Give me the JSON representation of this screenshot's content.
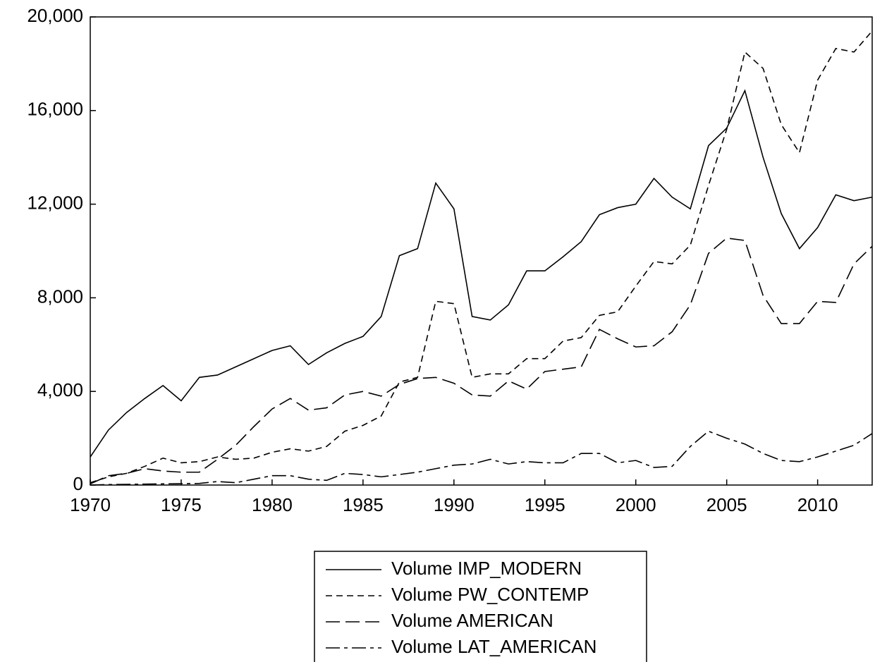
{
  "chart_data": {
    "type": "line",
    "x": [
      1970,
      1971,
      1972,
      1973,
      1974,
      1975,
      1976,
      1977,
      1978,
      1979,
      1980,
      1981,
      1982,
      1983,
      1984,
      1985,
      1986,
      1987,
      1988,
      1989,
      1990,
      1991,
      1992,
      1993,
      1994,
      1995,
      1996,
      1997,
      1998,
      1999,
      2000,
      2001,
      2002,
      2003,
      2004,
      2005,
      2006,
      2007,
      2008,
      2009,
      2010,
      2011,
      2012,
      2013
    ],
    "series": [
      {
        "name": "Volume IMP_MODERN",
        "color": "#000000",
        "line_style": "solid",
        "values": [
          1200,
          2350,
          3100,
          3700,
          4250,
          3600,
          4600,
          4700,
          5050,
          5400,
          5750,
          5950,
          5150,
          5650,
          6050,
          6350,
          7200,
          9800,
          10100,
          12900,
          11800,
          7200,
          7050,
          7700,
          9150,
          9150,
          9750,
          10400,
          11550,
          11850,
          12000,
          13100,
          12300,
          11800,
          14500,
          15250,
          16850,
          14000,
          11600,
          10100,
          11000,
          12400,
          12150,
          12300
        ]
      },
      {
        "name": "Volume PW_CONTEMP",
        "color": "#000000",
        "line_style": "short-dash",
        "values": [
          100,
          350,
          500,
          800,
          1150,
          950,
          1000,
          1200,
          1100,
          1150,
          1400,
          1550,
          1450,
          1650,
          2300,
          2550,
          2950,
          4400,
          4600,
          7850,
          7750,
          4600,
          4750,
          4750,
          5400,
          5400,
          6150,
          6300,
          7250,
          7400,
          8500,
          9550,
          9450,
          10250,
          12800,
          15200,
          18500,
          17800,
          15400,
          14200,
          17300,
          18650,
          18500,
          19400
        ]
      },
      {
        "name": "Volume AMERICAN",
        "color": "#000000",
        "line_style": "long-dash",
        "values": [
          50,
          400,
          500,
          700,
          600,
          550,
          550,
          1100,
          1700,
          2500,
          3250,
          3700,
          3200,
          3300,
          3850,
          4000,
          3800,
          4300,
          4550,
          4600,
          4350,
          3850,
          3800,
          4450,
          4100,
          4850,
          4950,
          5050,
          6650,
          6250,
          5900,
          5950,
          6550,
          7700,
          9900,
          10550,
          10450,
          8100,
          6900,
          6900,
          7850,
          7800,
          9450,
          10200
        ]
      },
      {
        "name": "Volume LAT_AMERICAN",
        "color": "#000000",
        "line_style": "dash-dot",
        "values": [
          0,
          20,
          30,
          40,
          50,
          60,
          70,
          150,
          100,
          250,
          400,
          400,
          250,
          200,
          500,
          450,
          350,
          450,
          550,
          700,
          850,
          900,
          1100,
          900,
          1000,
          950,
          950,
          1350,
          1350,
          950,
          1050,
          750,
          800,
          1650,
          2300,
          2000,
          1750,
          1350,
          1050,
          1000,
          1200,
          1450,
          1700,
          2200
        ]
      }
    ],
    "xlim": [
      1970,
      2013
    ],
    "xticks": [
      1970,
      1975,
      1980,
      1985,
      1990,
      1995,
      2000,
      2005,
      2010
    ],
    "ylim": [
      0,
      20000
    ],
    "yticks": [
      0,
      {
        "value": 4000,
        "label": "4,000"
      },
      {
        "value": 8000,
        "label": "8,000"
      },
      {
        "value": 12000,
        "label": "12,000"
      },
      {
        "value": 16000,
        "label": "16,000"
      },
      {
        "value": 20000,
        "label": "20,000"
      }
    ],
    "legend": "bottom"
  }
}
